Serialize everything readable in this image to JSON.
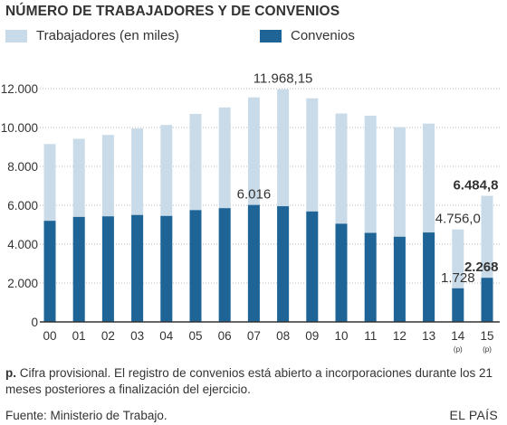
{
  "header": {
    "title": "NÚMERO DE TRABAJADORES Y DE CONVENIOS"
  },
  "legend": {
    "trabajadores": "Trabajadores (en miles)",
    "convenios": "Convenios"
  },
  "colors": {
    "trabajadores": "#c9dbe8",
    "convenios": "#1e6496",
    "axis": "#333333",
    "grid": "#b8b8b8"
  },
  "chart_data": {
    "type": "bar",
    "stacking": "overlay",
    "categories": [
      "00",
      "01",
      "02",
      "03",
      "04",
      "05",
      "06",
      "07",
      "08",
      "09",
      "10",
      "11",
      "12",
      "13",
      "14",
      "15"
    ],
    "category_notes": [
      "",
      "",
      "",
      "",
      "",
      "",
      "",
      "",
      "",
      "",
      "",
      "",
      "",
      "",
      "(p)",
      "(p)"
    ],
    "series": [
      {
        "name": "Trabajadores (en miles)",
        "values": [
          9150,
          9420,
          9620,
          9950,
          10130,
          10700,
          11030,
          11550,
          11968.15,
          11500,
          10720,
          10610,
          10020,
          10200,
          4756.0,
          6484.8
        ]
      },
      {
        "name": "Convenios",
        "values": [
          5200,
          5400,
          5430,
          5500,
          5450,
          5750,
          5850,
          6016,
          5950,
          5680,
          5050,
          4580,
          4380,
          4600,
          1728,
          2268
        ]
      }
    ],
    "ylim": [
      0,
      12000
    ],
    "yticks": [
      0,
      2000,
      4000,
      6000,
      8000,
      10000,
      12000
    ],
    "ytick_labels": [
      "0",
      "2.000",
      "4.000",
      "6.000",
      "8.000",
      "10.000",
      "12.000"
    ],
    "grid": true,
    "legend_position": "top-left",
    "annotations": [
      {
        "category": "08",
        "series": "Trabajadores (en miles)",
        "text": "11.968,15",
        "bold": false
      },
      {
        "category": "07",
        "series": "Convenios",
        "text": "6.016",
        "bold": false
      },
      {
        "category": "14",
        "series": "Trabajadores (en miles)",
        "text": "4.756,0",
        "bold": false
      },
      {
        "category": "14",
        "series": "Convenios",
        "text": "1.728",
        "bold": false
      },
      {
        "category": "15",
        "series": "Trabajadores (en miles)",
        "text": "6.484,8",
        "bold": true
      },
      {
        "category": "15",
        "series": "Convenios",
        "text": "2.268",
        "bold": true
      }
    ]
  },
  "footnote": {
    "marker": "p.",
    "text": " Cifra provisional. El registro de convenios está abierto a incorporaciones durante los 21 meses posteriores a finalización del ejercicio."
  },
  "source": "Fuente: Ministerio de Trabajo.",
  "brand": "EL PAÍS"
}
